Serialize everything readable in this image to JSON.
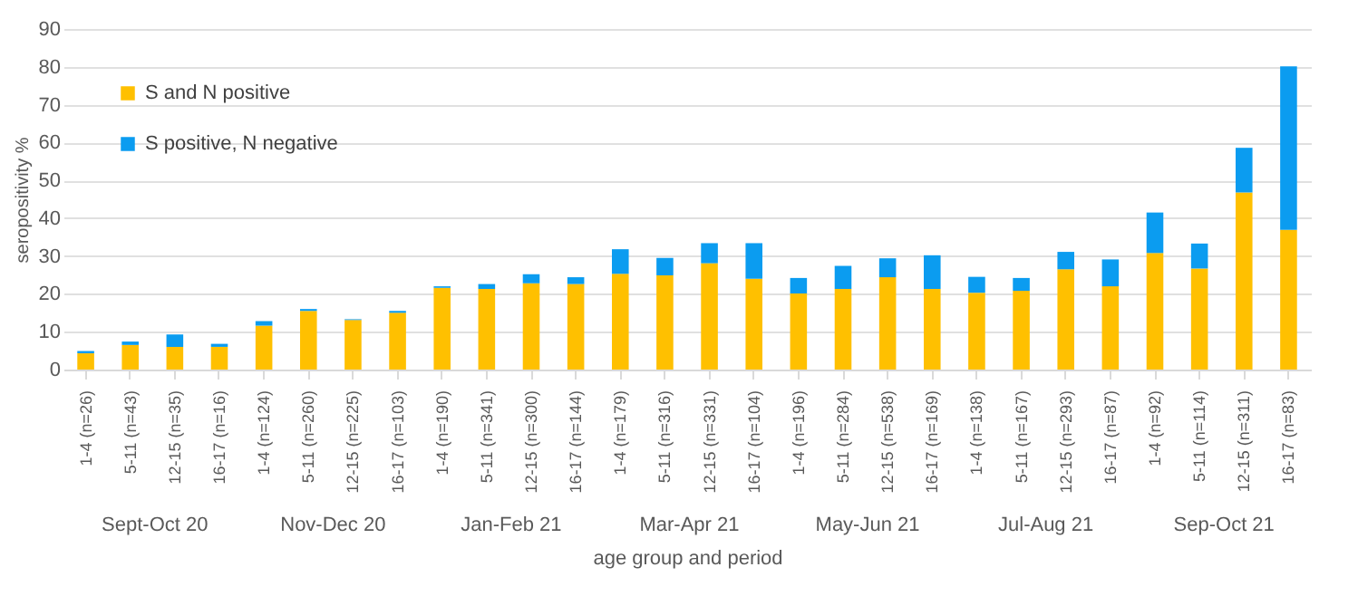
{
  "chart_data": {
    "type": "bar",
    "stacked": true,
    "xlabel": "age group and period",
    "ylabel": "seropositivity %",
    "categories": [
      "1-4 (n=26)",
      "5-11 (n=43)",
      "12-15 (n=35)",
      "16-17 (n=16)",
      "1-4 (n=124)",
      "5-11 (n=260)",
      "12-15 (n=225)",
      "16-17 (n=103)",
      "1-4 (n=190)",
      "5-11 (n=341)",
      "12-15 (n=300)",
      "16-17 (n=144)",
      "1-4 (n=179)",
      "5-11 (n=316)",
      "12-15 (n=331)",
      "16-17 (n=104)",
      "1-4 (n=196)",
      "5-11 (n=284)",
      "12-15 (n=538)",
      "16-17 (n=169)",
      "1-4 (n=138)",
      "5-11 (n=167)",
      "12-15 (n=293)",
      "16-17 (n=87)",
      "1-4 (n=92)",
      "5-11 (n=114)",
      "12-15 (n=311)",
      "16-17 (n=83)"
    ],
    "series": [
      {
        "name": "S and N positive",
        "color": "#ffc000",
        "values": [
          4.3,
          6.5,
          6.0,
          6.0,
          11.6,
          15.5,
          13.1,
          15.0,
          21.6,
          21.3,
          22.8,
          22.6,
          25.3,
          24.9,
          28.1,
          24.0,
          20.1,
          21.3,
          24.4,
          21.3,
          20.3,
          20.8,
          26.5,
          22.0,
          30.8,
          26.7,
          46.8,
          36.9
        ]
      },
      {
        "name": "S positive, N negative",
        "color": "#0b9cf0",
        "values": [
          0.6,
          0.9,
          3.3,
          0.8,
          1.2,
          0.5,
          0.2,
          0.5,
          0.4,
          1.3,
          2.4,
          1.8,
          6.5,
          4.6,
          5.3,
          9.4,
          4.1,
          6.1,
          5.0,
          8.9,
          4.2,
          3.4,
          4.6,
          7.1,
          10.7,
          6.6,
          11.8,
          43.2
        ]
      }
    ],
    "annotations": [
      "Sept-Oct 20",
      "Nov-Dec 20",
      "Jan-Feb 21",
      "Mar-Apr 21",
      "May-Jun 21",
      "Jul-Aug 21",
      "Sep-Oct 21"
    ],
    "ylim": [
      0,
      90
    ],
    "yticks": [
      0,
      10,
      20,
      30,
      40,
      50,
      60,
      70,
      80,
      90
    ],
    "grid": "y",
    "legend": "top left"
  }
}
